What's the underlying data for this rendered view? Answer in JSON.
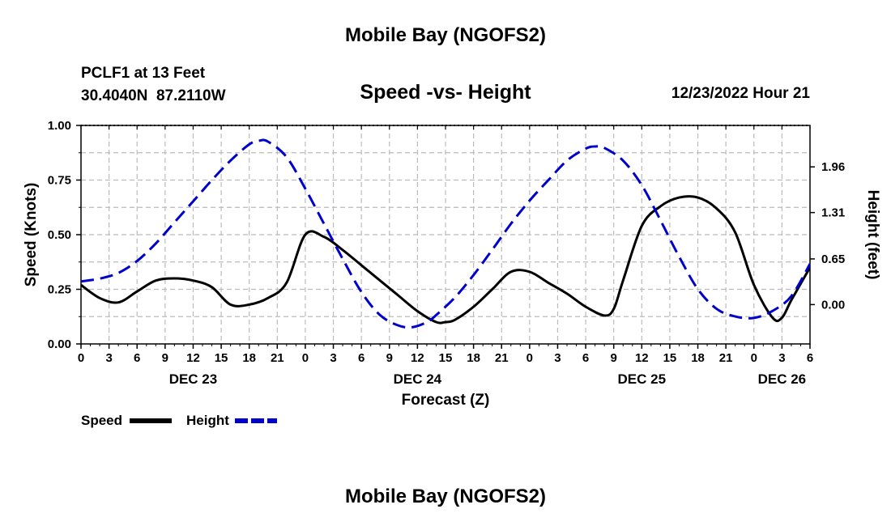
{
  "header": {
    "title": "Mobile Bay (NGOFS2)",
    "station_line": "PCLF1 at 13 Feet",
    "coords_line": "30.4040N  87.2110W",
    "datetime": "12/23/2022 Hour 21",
    "footer_title": "Mobile Bay (NGOFS2)"
  },
  "colors": {
    "speed": "#000000",
    "height": "#0000cc",
    "grid": "#bbbbbb"
  },
  "chart_data": {
    "type": "line",
    "title": "Speed -vs- Height",
    "xlabel": "Forecast (Z)",
    "ylabel": "Speed (Knots)",
    "y2label": "Height (feet)",
    "xlim": [
      0,
      78
    ],
    "ylim": [
      0,
      1.0
    ],
    "y2lim": [
      -0.56,
      2.55
    ],
    "yticks": [
      {
        "v": 0.0,
        "l": "0.00"
      },
      {
        "v": 0.25,
        "l": "0.25"
      },
      {
        "v": 0.5,
        "l": "0.50"
      },
      {
        "v": 0.75,
        "l": "0.75"
      },
      {
        "v": 1.0,
        "l": "1.00"
      }
    ],
    "y2ticks": [
      {
        "v": 0.0,
        "l": "0.00"
      },
      {
        "v": 0.65,
        "l": "0.65"
      },
      {
        "v": 1.31,
        "l": "1.31"
      },
      {
        "v": 1.96,
        "l": "1.96"
      }
    ],
    "xticks": [
      {
        "v": 0,
        "l": "0"
      },
      {
        "v": 3,
        "l": "3"
      },
      {
        "v": 6,
        "l": "6"
      },
      {
        "v": 9,
        "l": "9"
      },
      {
        "v": 12,
        "l": "12"
      },
      {
        "v": 15,
        "l": "15"
      },
      {
        "v": 18,
        "l": "18"
      },
      {
        "v": 21,
        "l": "21"
      },
      {
        "v": 24,
        "l": "0"
      },
      {
        "v": 27,
        "l": "3"
      },
      {
        "v": 30,
        "l": "6"
      },
      {
        "v": 33,
        "l": "9"
      },
      {
        "v": 36,
        "l": "12"
      },
      {
        "v": 39,
        "l": "15"
      },
      {
        "v": 42,
        "l": "18"
      },
      {
        "v": 45,
        "l": "21"
      },
      {
        "v": 48,
        "l": "0"
      },
      {
        "v": 51,
        "l": "3"
      },
      {
        "v": 54,
        "l": "6"
      },
      {
        "v": 57,
        "l": "9"
      },
      {
        "v": 60,
        "l": "12"
      },
      {
        "v": 63,
        "l": "15"
      },
      {
        "v": 66,
        "l": "18"
      },
      {
        "v": 69,
        "l": "21"
      },
      {
        "v": 72,
        "l": "0"
      },
      {
        "v": 75,
        "l": "3"
      },
      {
        "v": 78,
        "l": "6"
      }
    ],
    "day_labels": [
      {
        "v": 12,
        "l": "DEC 23"
      },
      {
        "v": 36,
        "l": "DEC 24"
      },
      {
        "v": 60,
        "l": "DEC 25"
      },
      {
        "v": 75,
        "l": "DEC 26"
      }
    ],
    "legend": [
      {
        "name": "Speed",
        "style": "solid"
      },
      {
        "name": "Height",
        "style": "dashed"
      }
    ],
    "series": [
      {
        "name": "Speed",
        "axis": "left",
        "x": [
          0,
          2,
          4,
          6,
          8,
          10,
          12,
          14,
          16,
          18,
          20,
          22,
          24,
          26,
          28,
          30,
          32,
          34,
          36,
          38,
          39,
          40,
          42,
          44,
          46,
          48,
          50,
          52,
          54,
          56,
          57,
          58,
          60,
          62,
          64,
          66,
          68,
          70,
          72,
          74,
          75,
          76,
          78
        ],
        "values": [
          0.27,
          0.21,
          0.19,
          0.24,
          0.29,
          0.3,
          0.29,
          0.26,
          0.18,
          0.18,
          0.21,
          0.28,
          0.5,
          0.49,
          0.43,
          0.36,
          0.29,
          0.22,
          0.15,
          0.1,
          0.1,
          0.11,
          0.17,
          0.25,
          0.33,
          0.33,
          0.28,
          0.23,
          0.17,
          0.13,
          0.16,
          0.29,
          0.54,
          0.63,
          0.67,
          0.67,
          0.62,
          0.51,
          0.27,
          0.12,
          0.12,
          0.2,
          0.35
        ]
      },
      {
        "name": "Height",
        "axis": "right",
        "x": [
          0,
          2,
          4,
          6,
          8,
          10,
          12,
          14,
          16,
          18,
          19,
          20,
          22,
          24,
          26,
          28,
          30,
          32,
          34,
          35.5,
          37,
          38,
          40,
          42,
          44,
          46,
          48,
          50,
          52,
          54,
          55,
          56,
          58,
          60,
          62,
          64,
          66,
          68,
          70,
          72,
          74,
          76,
          78
        ],
        "values": [
          0.33,
          0.37,
          0.45,
          0.62,
          0.87,
          1.17,
          1.47,
          1.77,
          2.05,
          2.28,
          2.33,
          2.32,
          2.1,
          1.65,
          1.15,
          0.65,
          0.18,
          -0.15,
          -0.3,
          -0.32,
          -0.25,
          -0.15,
          0.1,
          0.42,
          0.78,
          1.15,
          1.48,
          1.77,
          2.05,
          2.22,
          2.25,
          2.23,
          2.05,
          1.7,
          1.2,
          0.68,
          0.22,
          -0.06,
          -0.17,
          -0.19,
          -0.09,
          0.12,
          0.58
        ]
      }
    ]
  }
}
